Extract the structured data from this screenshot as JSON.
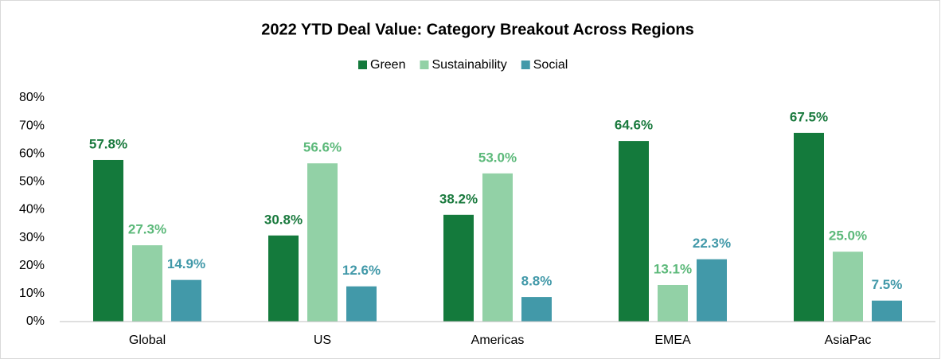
{
  "chart_data": {
    "type": "bar",
    "title": "2022 YTD Deal Value: Category Breakout Across Regions",
    "categories": [
      "Global",
      "US",
      "Americas",
      "EMEA",
      "AsiaPac"
    ],
    "series": [
      {
        "name": "Green",
        "color": "#147a3c",
        "label_color": "#1a7a3e",
        "values": [
          57.8,
          30.8,
          38.2,
          64.6,
          67.5
        ],
        "value_labels": [
          "57.8%",
          "30.8%",
          "38.2%",
          "64.6%",
          "67.5%"
        ]
      },
      {
        "name": "Sustainability",
        "color": "#92d1a6",
        "label_color": "#5cb97a",
        "values": [
          27.3,
          56.6,
          53.0,
          13.1,
          25.0
        ],
        "value_labels": [
          "27.3%",
          "56.6%",
          "53.0%",
          "13.1%",
          "25.0%"
        ]
      },
      {
        "name": "Social",
        "color": "#4299a9",
        "label_color": "#4299a9",
        "values": [
          14.9,
          12.6,
          8.8,
          22.3,
          7.5
        ],
        "value_labels": [
          "14.9%",
          "12.6%",
          "8.8%",
          "22.3%",
          "7.5%"
        ]
      }
    ],
    "ylim": [
      0,
      80
    ],
    "yticks": [
      {
        "value": 0,
        "label": "0%"
      },
      {
        "value": 10,
        "label": "10%"
      },
      {
        "value": 20,
        "label": "20%"
      },
      {
        "value": 30,
        "label": "30%"
      },
      {
        "value": 40,
        "label": "40%"
      },
      {
        "value": 50,
        "label": "50%"
      },
      {
        "value": 60,
        "label": "60%"
      },
      {
        "value": 70,
        "label": "70%"
      },
      {
        "value": 80,
        "label": "80%"
      }
    ],
    "grid": false,
    "legend": "top"
  }
}
